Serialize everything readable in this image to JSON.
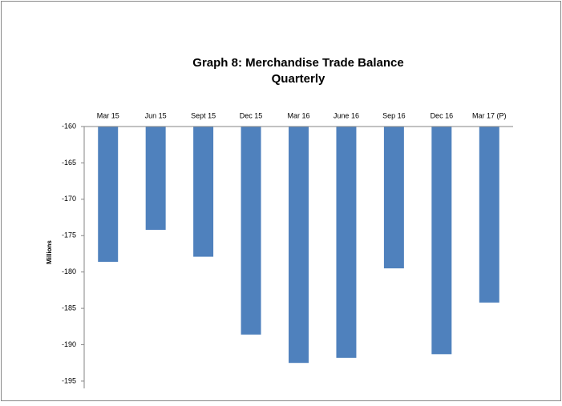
{
  "chart_data": {
    "type": "bar",
    "title": "Graph 8: Merchandise Trade Balance",
    "subtitle": "Quarterly",
    "y_label": "Millions",
    "categories": [
      "Mar 15",
      "Jun 15",
      "Sept 15",
      "Dec 15",
      "Mar 16",
      "June 16",
      "Sep 16",
      "Dec 16",
      "Mar 17 (P)"
    ],
    "values": [
      -178.6,
      -174.2,
      -177.9,
      -188.6,
      -192.5,
      -191.8,
      -179.5,
      -191.3,
      -184.2
    ],
    "color": "#4f81bd",
    "ylim": [
      -196,
      -160
    ],
    "yticks": [
      -195,
      -190,
      -185,
      -180,
      -175,
      -170,
      -165,
      -160
    ],
    "grid": false
  }
}
